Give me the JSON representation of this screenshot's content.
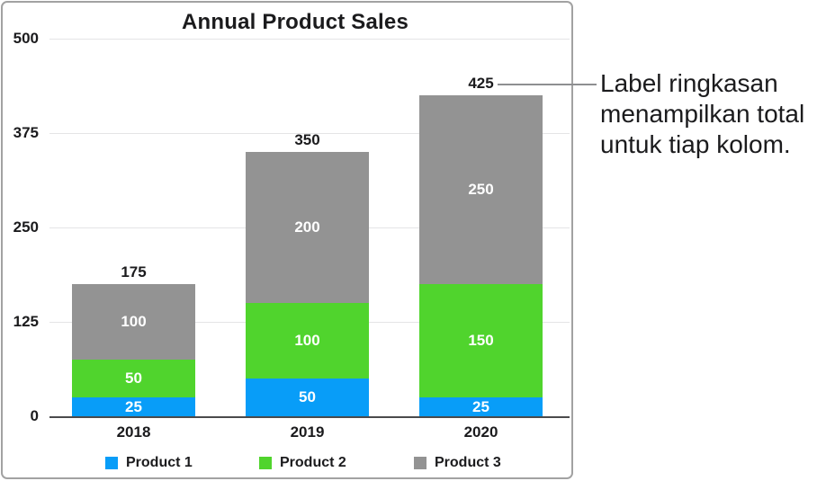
{
  "annotation": {
    "text": "Label ringkasan menampilkan total untuk tiap kolom."
  },
  "chart_data": {
    "type": "bar",
    "stacked": true,
    "title": "Annual Product Sales",
    "categories": [
      "2018",
      "2019",
      "2020"
    ],
    "series": [
      {
        "name": "Product 1",
        "color": "#089df8",
        "values": [
          25,
          50,
          25
        ]
      },
      {
        "name": "Product 2",
        "color": "#50d42d",
        "values": [
          50,
          100,
          150
        ]
      },
      {
        "name": "Product 3",
        "color": "#939393",
        "values": [
          100,
          200,
          250
        ]
      }
    ],
    "totals": [
      175,
      350,
      425
    ],
    "y_ticks": [
      0,
      125,
      250,
      375,
      500
    ],
    "ylim": [
      0,
      500
    ],
    "xlabel": "",
    "ylabel": "",
    "grid": true,
    "legend_position": "bottom",
    "colors": {
      "grid": "#e4e4e6",
      "axis_line": "#4a4a4c",
      "text": "#1b1b1d",
      "segment_label": "#ffffff",
      "frame_border": "#a2a2a2",
      "callout_line": "#8e8f91"
    }
  }
}
